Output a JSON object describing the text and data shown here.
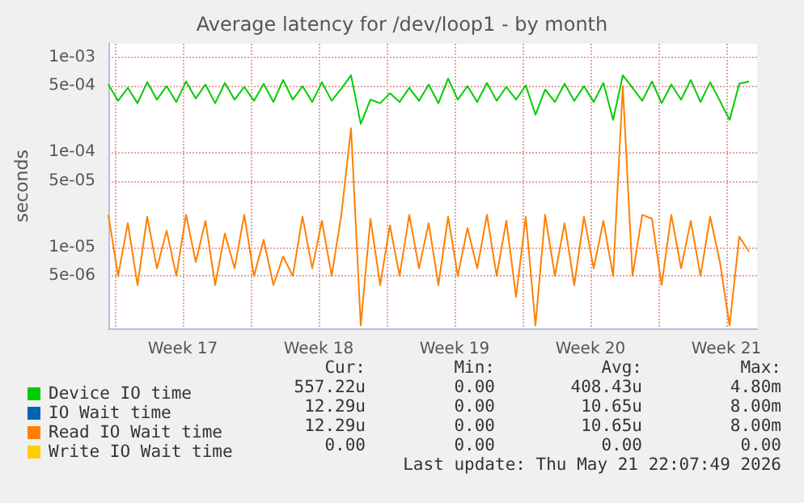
{
  "chart_data": {
    "type": "line",
    "title": "Average latency for /dev/loop1 - by month",
    "ylabel": "seconds",
    "log": "y",
    "grid": true,
    "legend": "bottom",
    "ylim": [
      1.4e-06,
      0.0014
    ],
    "yticks": [
      {
        "value": 0.001,
        "label": "1e-03"
      },
      {
        "value": 0.0005,
        "label": "5e-04"
      },
      {
        "value": 0.0001,
        "label": "1e-04"
      },
      {
        "value": 5e-05,
        "label": "5e-05"
      },
      {
        "value": 1e-05,
        "label": "1e-05"
      },
      {
        "value": 5e-06,
        "label": "5e-06"
      }
    ],
    "xlim": [
      "2026-04-18T12:00",
      "2026-05-21T22:00"
    ],
    "xticks": [
      {
        "value": "2026-04-18T20:00",
        "label": null
      },
      {
        "value": "2026-04-22T08:00",
        "label": "Week 17"
      },
      {
        "value": "2026-04-25T20:00",
        "label": null
      },
      {
        "value": "2026-04-29T08:00",
        "label": "Week 18"
      },
      {
        "value": "2026-05-02T20:00",
        "label": null
      },
      {
        "value": "2026-05-06T08:00",
        "label": "Week 19"
      },
      {
        "value": "2026-05-09T20:00",
        "label": null
      },
      {
        "value": "2026-05-13T08:00",
        "label": "Week 20"
      },
      {
        "value": "2026-05-16T20:00",
        "label": null
      },
      {
        "value": "2026-05-20T08:00",
        "label": "Week 21"
      }
    ],
    "x": [
      "2026-04-18T12:00",
      "2026-04-19T00:00",
      "2026-04-19T12:00",
      "2026-04-20T00:00",
      "2026-04-20T12:00",
      "2026-04-21T00:00",
      "2026-04-21T12:00",
      "2026-04-22T00:00",
      "2026-04-22T12:00",
      "2026-04-23T00:00",
      "2026-04-23T12:00",
      "2026-04-24T00:00",
      "2026-04-24T12:00",
      "2026-04-25T00:00",
      "2026-04-25T12:00",
      "2026-04-26T00:00",
      "2026-04-26T12:00",
      "2026-04-27T00:00",
      "2026-04-27T12:00",
      "2026-04-28T00:00",
      "2026-04-28T12:00",
      "2026-04-29T00:00",
      "2026-04-29T12:00",
      "2026-04-30T00:00",
      "2026-04-30T12:00",
      "2026-05-01T00:00",
      "2026-05-01T12:00",
      "2026-05-02T00:00",
      "2026-05-02T12:00",
      "2026-05-03T00:00",
      "2026-05-03T12:00",
      "2026-05-04T00:00",
      "2026-05-04T12:00",
      "2026-05-05T00:00",
      "2026-05-05T12:00",
      "2026-05-06T00:00",
      "2026-05-06T12:00",
      "2026-05-07T00:00",
      "2026-05-07T12:00",
      "2026-05-08T00:00",
      "2026-05-08T12:00",
      "2026-05-09T00:00",
      "2026-05-09T12:00",
      "2026-05-10T00:00",
      "2026-05-10T12:00",
      "2026-05-11T00:00",
      "2026-05-11T12:00",
      "2026-05-12T00:00",
      "2026-05-12T12:00",
      "2026-05-13T00:00",
      "2026-05-13T12:00",
      "2026-05-14T00:00",
      "2026-05-14T12:00",
      "2026-05-15T00:00",
      "2026-05-15T12:00",
      "2026-05-16T00:00",
      "2026-05-16T12:00",
      "2026-05-17T00:00",
      "2026-05-17T12:00",
      "2026-05-18T00:00",
      "2026-05-18T12:00",
      "2026-05-19T00:00",
      "2026-05-19T12:00",
      "2026-05-20T00:00",
      "2026-05-20T12:00",
      "2026-05-21T00:00",
      "2026-05-21T12:00"
    ],
    "series": [
      {
        "name": "Device IO time",
        "color": "#00cc00",
        "values": [
          0.00052,
          0.00035,
          0.00048,
          0.00033,
          0.00055,
          0.00036,
          0.0005,
          0.00034,
          0.00056,
          0.00037,
          0.00052,
          0.00033,
          0.00054,
          0.00036,
          0.00049,
          0.00035,
          0.00053,
          0.00034,
          0.00058,
          0.00036,
          0.0005,
          0.00034,
          0.00055,
          0.00035,
          0.00047,
          0.00065,
          0.0002,
          0.00036,
          0.00033,
          0.00042,
          0.00034,
          0.00048,
          0.00035,
          0.00052,
          0.00033,
          0.0006,
          0.00036,
          0.0005,
          0.00034,
          0.00054,
          0.00035,
          0.00049,
          0.00036,
          0.00051,
          0.00025,
          0.00046,
          0.00034,
          0.00053,
          0.00035,
          0.0005,
          0.00034,
          0.00054,
          0.00022,
          0.00065,
          0.00048,
          0.00035,
          0.00056,
          0.00033,
          0.00052,
          0.00036,
          0.00058,
          0.00034,
          0.00055,
          0.00035,
          0.00022,
          0.00053,
          0.00056
        ]
      },
      {
        "name": "IO Wait time",
        "color": "#0066b3",
        "values": [
          null,
          null,
          null,
          null,
          null,
          null,
          null,
          null,
          null,
          null,
          null,
          null,
          null,
          null,
          null,
          null,
          null,
          null,
          null,
          null,
          null,
          null,
          null,
          null,
          null,
          null,
          null,
          null,
          null,
          null,
          null,
          null,
          null,
          null,
          null,
          null,
          null,
          null,
          null,
          null,
          null,
          null,
          null,
          null,
          null,
          null,
          null,
          null,
          null,
          null,
          null,
          null,
          null,
          null,
          null,
          null,
          null,
          null,
          null,
          null,
          null,
          null,
          null,
          null,
          null,
          null,
          null
        ]
      },
      {
        "name": "Read IO Wait time",
        "color": "#ff8000",
        "values": [
          2.2e-05,
          5e-06,
          1.8e-05,
          4e-06,
          2.1e-05,
          6e-06,
          1.5e-05,
          5e-06,
          2.2e-05,
          7e-06,
          1.9e-05,
          4e-06,
          1.4e-05,
          6e-06,
          2.2e-05,
          5e-06,
          1.2e-05,
          4e-06,
          8e-06,
          5e-06,
          2.1e-05,
          6e-06,
          1.9e-05,
          5e-06,
          2.2e-05,
          0.00018,
          1.5e-06,
          2e-05,
          4e-06,
          1.7e-05,
          5e-06,
          2.2e-05,
          6e-06,
          1.8e-05,
          4e-06,
          2.1e-05,
          5e-06,
          1.6e-05,
          6e-06,
          2.2e-05,
          5e-06,
          1.9e-05,
          3e-06,
          2.1e-05,
          1.5e-06,
          2.2e-05,
          5e-06,
          1.8e-05,
          4e-06,
          2.1e-05,
          6e-06,
          1.9e-05,
          5e-06,
          0.0005,
          5e-06,
          2.2e-05,
          2e-05,
          4e-06,
          2.2e-05,
          6e-06,
          1.9e-05,
          5e-06,
          2.1e-05,
          7e-06,
          1.5e-06,
          1.3e-05,
          9e-06
        ]
      },
      {
        "name": "Write IO Wait time",
        "color": "#ffcc00",
        "values": [
          null,
          null,
          null,
          null,
          null,
          null,
          null,
          null,
          null,
          null,
          null,
          null,
          null,
          null,
          null,
          null,
          null,
          null,
          null,
          null,
          null,
          null,
          null,
          null,
          null,
          null,
          null,
          null,
          null,
          null,
          null,
          null,
          null,
          null,
          null,
          null,
          null,
          null,
          null,
          null,
          null,
          null,
          null,
          null,
          null,
          null,
          null,
          null,
          null,
          null,
          null,
          null,
          null,
          null,
          null,
          null,
          null,
          null,
          null,
          null,
          null,
          null,
          null,
          null,
          null,
          null,
          null
        ]
      }
    ],
    "annotations": [
      "Cur:",
      "Min:",
      "Avg:",
      "Max:",
      "557.22u",
      "0.00",
      "408.43u",
      "4.80m",
      "12.29u",
      "0.00",
      "10.65u",
      "8.00m",
      "12.29u",
      "0.00",
      "10.65u",
      "8.00m",
      "0.00",
      "0.00",
      "0.00",
      "0.00",
      "Last update: Thu May 21 22:07:49 2026"
    ]
  }
}
